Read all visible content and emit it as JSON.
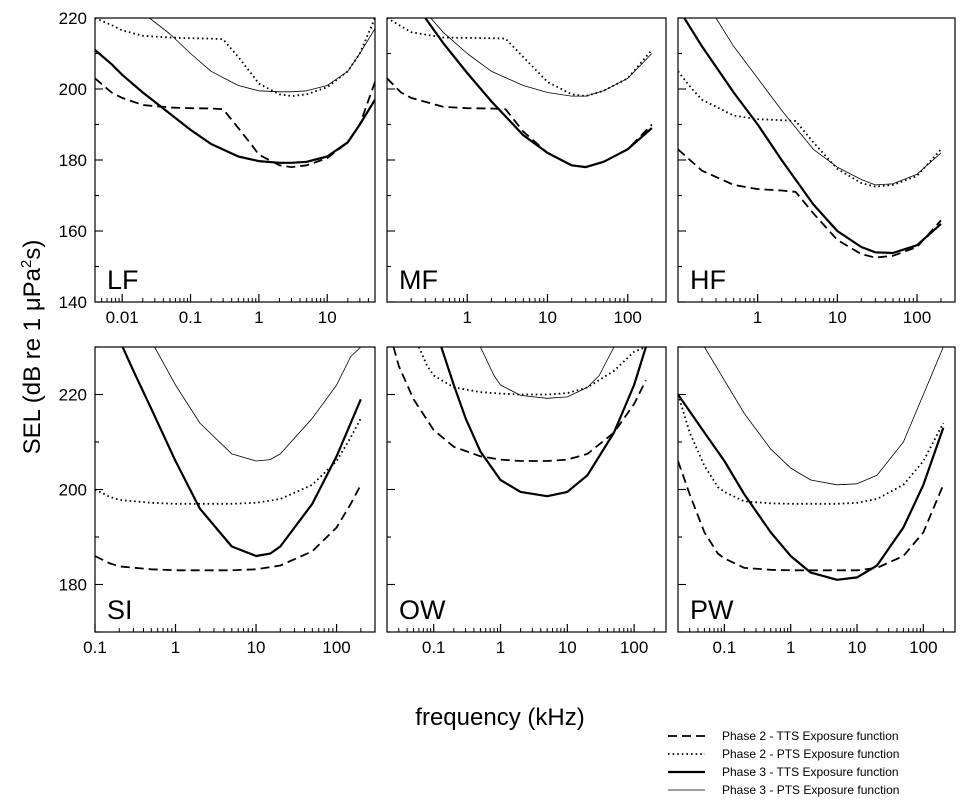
{
  "figure": {
    "ylabel_pre": "SEL (dB re 1 μPa",
    "ylabel_sup": "2",
    "ylabel_post": "s)",
    "xlabel": "frequency (kHz)"
  },
  "legend": [
    {
      "label": "Phase 2 - TTS Exposure function",
      "style": "dashed"
    },
    {
      "label": "Phase 2 - PTS Exposure function",
      "style": "dotted"
    },
    {
      "label": "Phase 3 - TTS Exposure function",
      "style": "solid-thick"
    },
    {
      "label": "Phase 3 - PTS Exposure function",
      "style": "solid-thin"
    }
  ],
  "chart_data": [
    {
      "type": "line",
      "panel": "LF",
      "xscale": "log",
      "xlim": [
        0.004,
        50
      ],
      "ylim": [
        140,
        220
      ],
      "xticks": [
        0.01,
        0.1,
        1,
        10
      ],
      "xtick_labels": [
        "0.01",
        "0.1",
        "1",
        "10"
      ],
      "yticks": [
        140,
        160,
        180,
        200,
        220
      ],
      "ytick_labels": [
        "140",
        "160",
        "180",
        "200",
        "220"
      ],
      "xlabel": "frequency (kHz)",
      "ylabel": "SEL (dB re 1 μPa²s)",
      "series": [
        {
          "name": "Phase 2 - TTS Exposure function",
          "style": "dashed",
          "x": [
            0.004,
            0.007,
            0.01,
            0.02,
            0.05,
            0.1,
            0.2,
            0.3,
            0.5,
            0.8,
            1,
            2,
            3,
            5,
            10,
            20,
            30,
            50
          ],
          "y": [
            203,
            199,
            197.5,
            195.5,
            194.8,
            194.6,
            194.5,
            194.3,
            189,
            184,
            181.5,
            178.5,
            178,
            178.5,
            180.5,
            185,
            190,
            202
          ]
        },
        {
          "name": "Phase 2 - PTS Exposure function",
          "style": "dotted",
          "x": [
            0.004,
            0.007,
            0.01,
            0.02,
            0.05,
            0.1,
            0.2,
            0.3,
            0.5,
            0.8,
            1,
            2,
            3,
            5,
            10,
            20,
            30,
            50
          ],
          "y": [
            220,
            218,
            216.5,
            215,
            214.5,
            214.3,
            214.2,
            214,
            209,
            204,
            201.5,
            198.5,
            198,
            198.5,
            200.5,
            205,
            210,
            220
          ]
        },
        {
          "name": "Phase 3 - TTS Exposure function",
          "style": "solid-thick",
          "x": [
            0.004,
            0.007,
            0.01,
            0.02,
            0.05,
            0.1,
            0.2,
            0.5,
            1,
            2,
            3,
            5,
            10,
            20,
            30,
            50
          ],
          "y": [
            211,
            207,
            204,
            199,
            193,
            188.5,
            184.5,
            181,
            179.7,
            179.2,
            179.2,
            179.5,
            181,
            185,
            190,
            197
          ]
        },
        {
          "name": "Phase 3 - PTS Exposure function",
          "style": "solid-thin",
          "x": [
            0.025,
            0.05,
            0.1,
            0.2,
            0.5,
            1,
            2,
            3,
            5,
            10,
            20,
            30,
            50
          ],
          "y": [
            220,
            215.5,
            210,
            205,
            201,
            199.5,
            199.2,
            199.2,
            199.5,
            201,
            205,
            210,
            217
          ]
        }
      ]
    },
    {
      "type": "line",
      "panel": "MF",
      "xscale": "log",
      "xlim": [
        0.1,
        300
      ],
      "ylim": [
        140,
        220
      ],
      "xticks": [
        1,
        10,
        100
      ],
      "xtick_labels": [
        "1",
        "10",
        "100"
      ],
      "yticks": [
        140,
        160,
        180,
        200,
        220
      ],
      "ytick_labels": [
        "140",
        "160",
        "180",
        "200",
        "220"
      ],
      "series": [
        {
          "name": "Phase 2 - TTS Exposure function",
          "style": "dashed",
          "x": [
            0.1,
            0.15,
            0.2,
            0.5,
            1,
            2,
            3,
            5,
            10,
            20,
            30,
            50,
            100,
            200
          ],
          "y": [
            203,
            199,
            197.5,
            195,
            194.6,
            194.5,
            194.3,
            188,
            182,
            178.5,
            178,
            179.5,
            183,
            190
          ]
        },
        {
          "name": "Phase 2 - PTS Exposure function",
          "style": "dotted",
          "x": [
            0.1,
            0.2,
            0.5,
            1,
            2,
            3,
            5,
            10,
            20,
            30,
            50,
            100,
            200
          ],
          "y": [
            220,
            216,
            214.5,
            214.4,
            214.3,
            214.2,
            209,
            202,
            198.5,
            198,
            199.5,
            203,
            211
          ]
        },
        {
          "name": "Phase 3 - TTS Exposure function",
          "style": "solid-thick",
          "x": [
            0.3,
            0.5,
            1,
            2,
            5,
            10,
            20,
            30,
            50,
            100,
            200
          ],
          "y": [
            220,
            213,
            204.5,
            196.5,
            187,
            182,
            178.5,
            178,
            179.5,
            183,
            189
          ]
        },
        {
          "name": "Phase 3 - PTS Exposure function",
          "style": "solid-thin",
          "x": [
            0.35,
            0.5,
            1,
            2,
            5,
            10,
            20,
            30,
            50,
            100,
            200
          ],
          "y": [
            220,
            216,
            210,
            205,
            201,
            199,
            198,
            198,
            199.5,
            203,
            210
          ]
        }
      ]
    },
    {
      "type": "line",
      "panel": "HF",
      "xscale": "log",
      "xlim": [
        0.1,
        300
      ],
      "ylim": [
        140,
        220
      ],
      "xticks": [
        1,
        10,
        100
      ],
      "xtick_labels": [
        "1",
        "10",
        "100"
      ],
      "yticks": [
        140,
        160,
        180,
        200,
        220
      ],
      "ytick_labels": [
        "140",
        "160",
        "180",
        "200",
        "220"
      ],
      "series": [
        {
          "name": "Phase 2 - TTS Exposure function",
          "style": "dashed",
          "x": [
            0.1,
            0.15,
            0.2,
            0.5,
            1,
            2,
            3,
            5,
            10,
            20,
            30,
            50,
            100,
            200
          ],
          "y": [
            183,
            179.5,
            177,
            173,
            171.8,
            171.4,
            171,
            165,
            157.5,
            153.5,
            152.5,
            153,
            155.5,
            163
          ]
        },
        {
          "name": "Phase 2 - PTS Exposure function",
          "style": "dotted",
          "x": [
            0.1,
            0.15,
            0.2,
            0.5,
            1,
            2,
            3,
            5,
            10,
            20,
            30,
            50,
            100,
            200
          ],
          "y": [
            205,
            200,
            197,
            192.5,
            191.5,
            191.2,
            191,
            185,
            177.5,
            173.5,
            172.5,
            173,
            175.5,
            183
          ]
        },
        {
          "name": "Phase 3 - TTS Exposure function",
          "style": "solid-thick",
          "x": [
            0.12,
            0.2,
            0.5,
            1,
            2,
            5,
            10,
            20,
            30,
            50,
            100,
            200
          ],
          "y": [
            220,
            212,
            199,
            190,
            180,
            167.5,
            160,
            155.5,
            154,
            153.8,
            156,
            162
          ]
        },
        {
          "name": "Phase 3 - PTS Exposure function",
          "style": "solid-thin",
          "x": [
            0.3,
            0.5,
            1,
            2,
            5,
            10,
            20,
            30,
            50,
            100,
            200
          ],
          "y": [
            220,
            212,
            203,
            194,
            183,
            178,
            174.5,
            173,
            173.3,
            176,
            182
          ]
        }
      ]
    },
    {
      "type": "line",
      "panel": "SI",
      "xscale": "log",
      "xlim": [
        0.1,
        300
      ],
      "ylim": [
        170,
        230
      ],
      "xticks": [
        0.1,
        1,
        10,
        100
      ],
      "xtick_labels": [
        "0.1",
        "1",
        "10",
        "100"
      ],
      "yticks": [
        180,
        200,
        220
      ],
      "ytick_labels": [
        "180",
        "200",
        "220"
      ],
      "series": [
        {
          "name": "Phase 2 - TTS Exposure function",
          "style": "dashed",
          "x": [
            0.1,
            0.15,
            0.2,
            0.5,
            1,
            2,
            5,
            10,
            20,
            50,
            100,
            150,
            200
          ],
          "y": [
            186,
            184.5,
            183.8,
            183.2,
            183,
            183,
            183,
            183.2,
            184,
            187,
            192,
            197,
            201
          ]
        },
        {
          "name": "Phase 2 - PTS Exposure function",
          "style": "dotted",
          "x": [
            0.1,
            0.15,
            0.2,
            0.5,
            1,
            2,
            5,
            10,
            20,
            50,
            100,
            150,
            200
          ],
          "y": [
            200,
            198.5,
            197.8,
            197.2,
            197,
            197,
            197,
            197.2,
            198,
            201,
            206,
            211,
            215
          ]
        },
        {
          "name": "Phase 3 - TTS Exposure function",
          "style": "solid-thick",
          "x": [
            0.22,
            0.3,
            0.5,
            1,
            2,
            5,
            10,
            15,
            20,
            50,
            100,
            200
          ],
          "y": [
            230,
            225,
            217,
            206,
            196,
            188,
            186,
            186.5,
            188,
            197,
            207,
            219
          ]
        },
        {
          "name": "Phase 3 - PTS Exposure function",
          "style": "solid-thin",
          "x": [
            0.55,
            1,
            2,
            5,
            10,
            15,
            20,
            50,
            100,
            150,
            200
          ],
          "y": [
            230,
            222,
            214,
            207.5,
            206,
            206.3,
            207.5,
            215,
            222,
            228,
            230
          ]
        }
      ]
    },
    {
      "type": "line",
      "panel": "OW",
      "xscale": "log",
      "xlim": [
        0.02,
        300
      ],
      "ylim": [
        170,
        230
      ],
      "xticks": [
        0.1,
        1,
        10,
        100
      ],
      "xtick_labels": [
        "0.1",
        "1",
        "10",
        "100"
      ],
      "yticks": [
        180,
        200,
        220
      ],
      "ytick_labels": [
        "180",
        "200",
        "220"
      ],
      "series": [
        {
          "name": "Phase 2 - TTS Exposure function",
          "style": "dashed",
          "x": [
            0.025,
            0.03,
            0.05,
            0.1,
            0.2,
            0.5,
            1,
            2,
            5,
            10,
            20,
            50,
            100,
            150
          ],
          "y": [
            230,
            226,
            219,
            212.5,
            209,
            207,
            206.3,
            206,
            206,
            206.3,
            207.5,
            212,
            218,
            223
          ]
        },
        {
          "name": "Phase 2 - PTS Exposure function",
          "style": "dotted",
          "x": [
            0.06,
            0.08,
            0.1,
            0.2,
            0.5,
            1,
            2,
            5,
            10,
            20,
            50,
            100,
            150
          ],
          "y": [
            230,
            226,
            224,
            221.5,
            220.5,
            220.2,
            220,
            220,
            220.3,
            221.5,
            225,
            229,
            230
          ]
        },
        {
          "name": "Phase 3 - TTS Exposure function",
          "style": "solid-thick",
          "x": [
            0.13,
            0.2,
            0.3,
            0.5,
            1,
            2,
            5,
            10,
            20,
            50,
            100,
            150
          ],
          "y": [
            230,
            222,
            215,
            208,
            202,
            199.5,
            198.6,
            199.5,
            203,
            212,
            222,
            230
          ]
        },
        {
          "name": "Phase 3 - PTS Exposure function",
          "style": "solid-thin",
          "x": [
            0.5,
            0.8,
            1,
            2,
            5,
            10,
            20,
            30,
            50
          ],
          "y": [
            230,
            224,
            222,
            219.8,
            219.2,
            219.5,
            221.5,
            224,
            230
          ]
        }
      ]
    },
    {
      "type": "line",
      "panel": "PW",
      "xscale": "log",
      "xlim": [
        0.02,
        300
      ],
      "ylim": [
        170,
        230
      ],
      "xticks": [
        0.1,
        1,
        10,
        100
      ],
      "xtick_labels": [
        "0.1",
        "1",
        "10",
        "100"
      ],
      "yticks": [
        180,
        200,
        220
      ],
      "ytick_labels": [
        "180",
        "200",
        "220"
      ],
      "series": [
        {
          "name": "Phase 2 - TTS Exposure function",
          "style": "dashed",
          "x": [
            0.02,
            0.03,
            0.05,
            0.08,
            0.1,
            0.2,
            0.5,
            1,
            2,
            5,
            10,
            20,
            50,
            100,
            200
          ],
          "y": [
            206,
            199,
            191,
            186.5,
            185.5,
            183.5,
            183.1,
            183,
            183,
            183,
            183,
            183.5,
            186,
            191,
            201
          ]
        },
        {
          "name": "Phase 2 - PTS Exposure function",
          "style": "dotted",
          "x": [
            0.02,
            0.03,
            0.05,
            0.08,
            0.1,
            0.2,
            0.5,
            1,
            2,
            5,
            10,
            20,
            50,
            100,
            200
          ],
          "y": [
            220,
            212,
            205,
            200.5,
            199.5,
            197.5,
            197.1,
            197,
            197,
            197,
            197.2,
            198,
            201,
            206,
            214
          ]
        },
        {
          "name": "Phase 3 - TTS Exposure function",
          "style": "solid-thick",
          "x": [
            0.02,
            0.05,
            0.1,
            0.2,
            0.5,
            1,
            2,
            5,
            10,
            20,
            50,
            100,
            200
          ],
          "y": [
            220,
            212,
            206,
            199,
            191,
            186,
            182.5,
            181,
            181.5,
            184,
            192,
            201,
            213
          ]
        },
        {
          "name": "Phase 3 - PTS Exposure function",
          "style": "solid-thin",
          "x": [
            0.05,
            0.1,
            0.2,
            0.5,
            1,
            2,
            5,
            10,
            20,
            50,
            100,
            200
          ],
          "y": [
            230,
            223,
            216,
            208.5,
            204.5,
            202,
            201,
            201.2,
            203,
            210,
            220,
            230
          ]
        }
      ]
    }
  ]
}
